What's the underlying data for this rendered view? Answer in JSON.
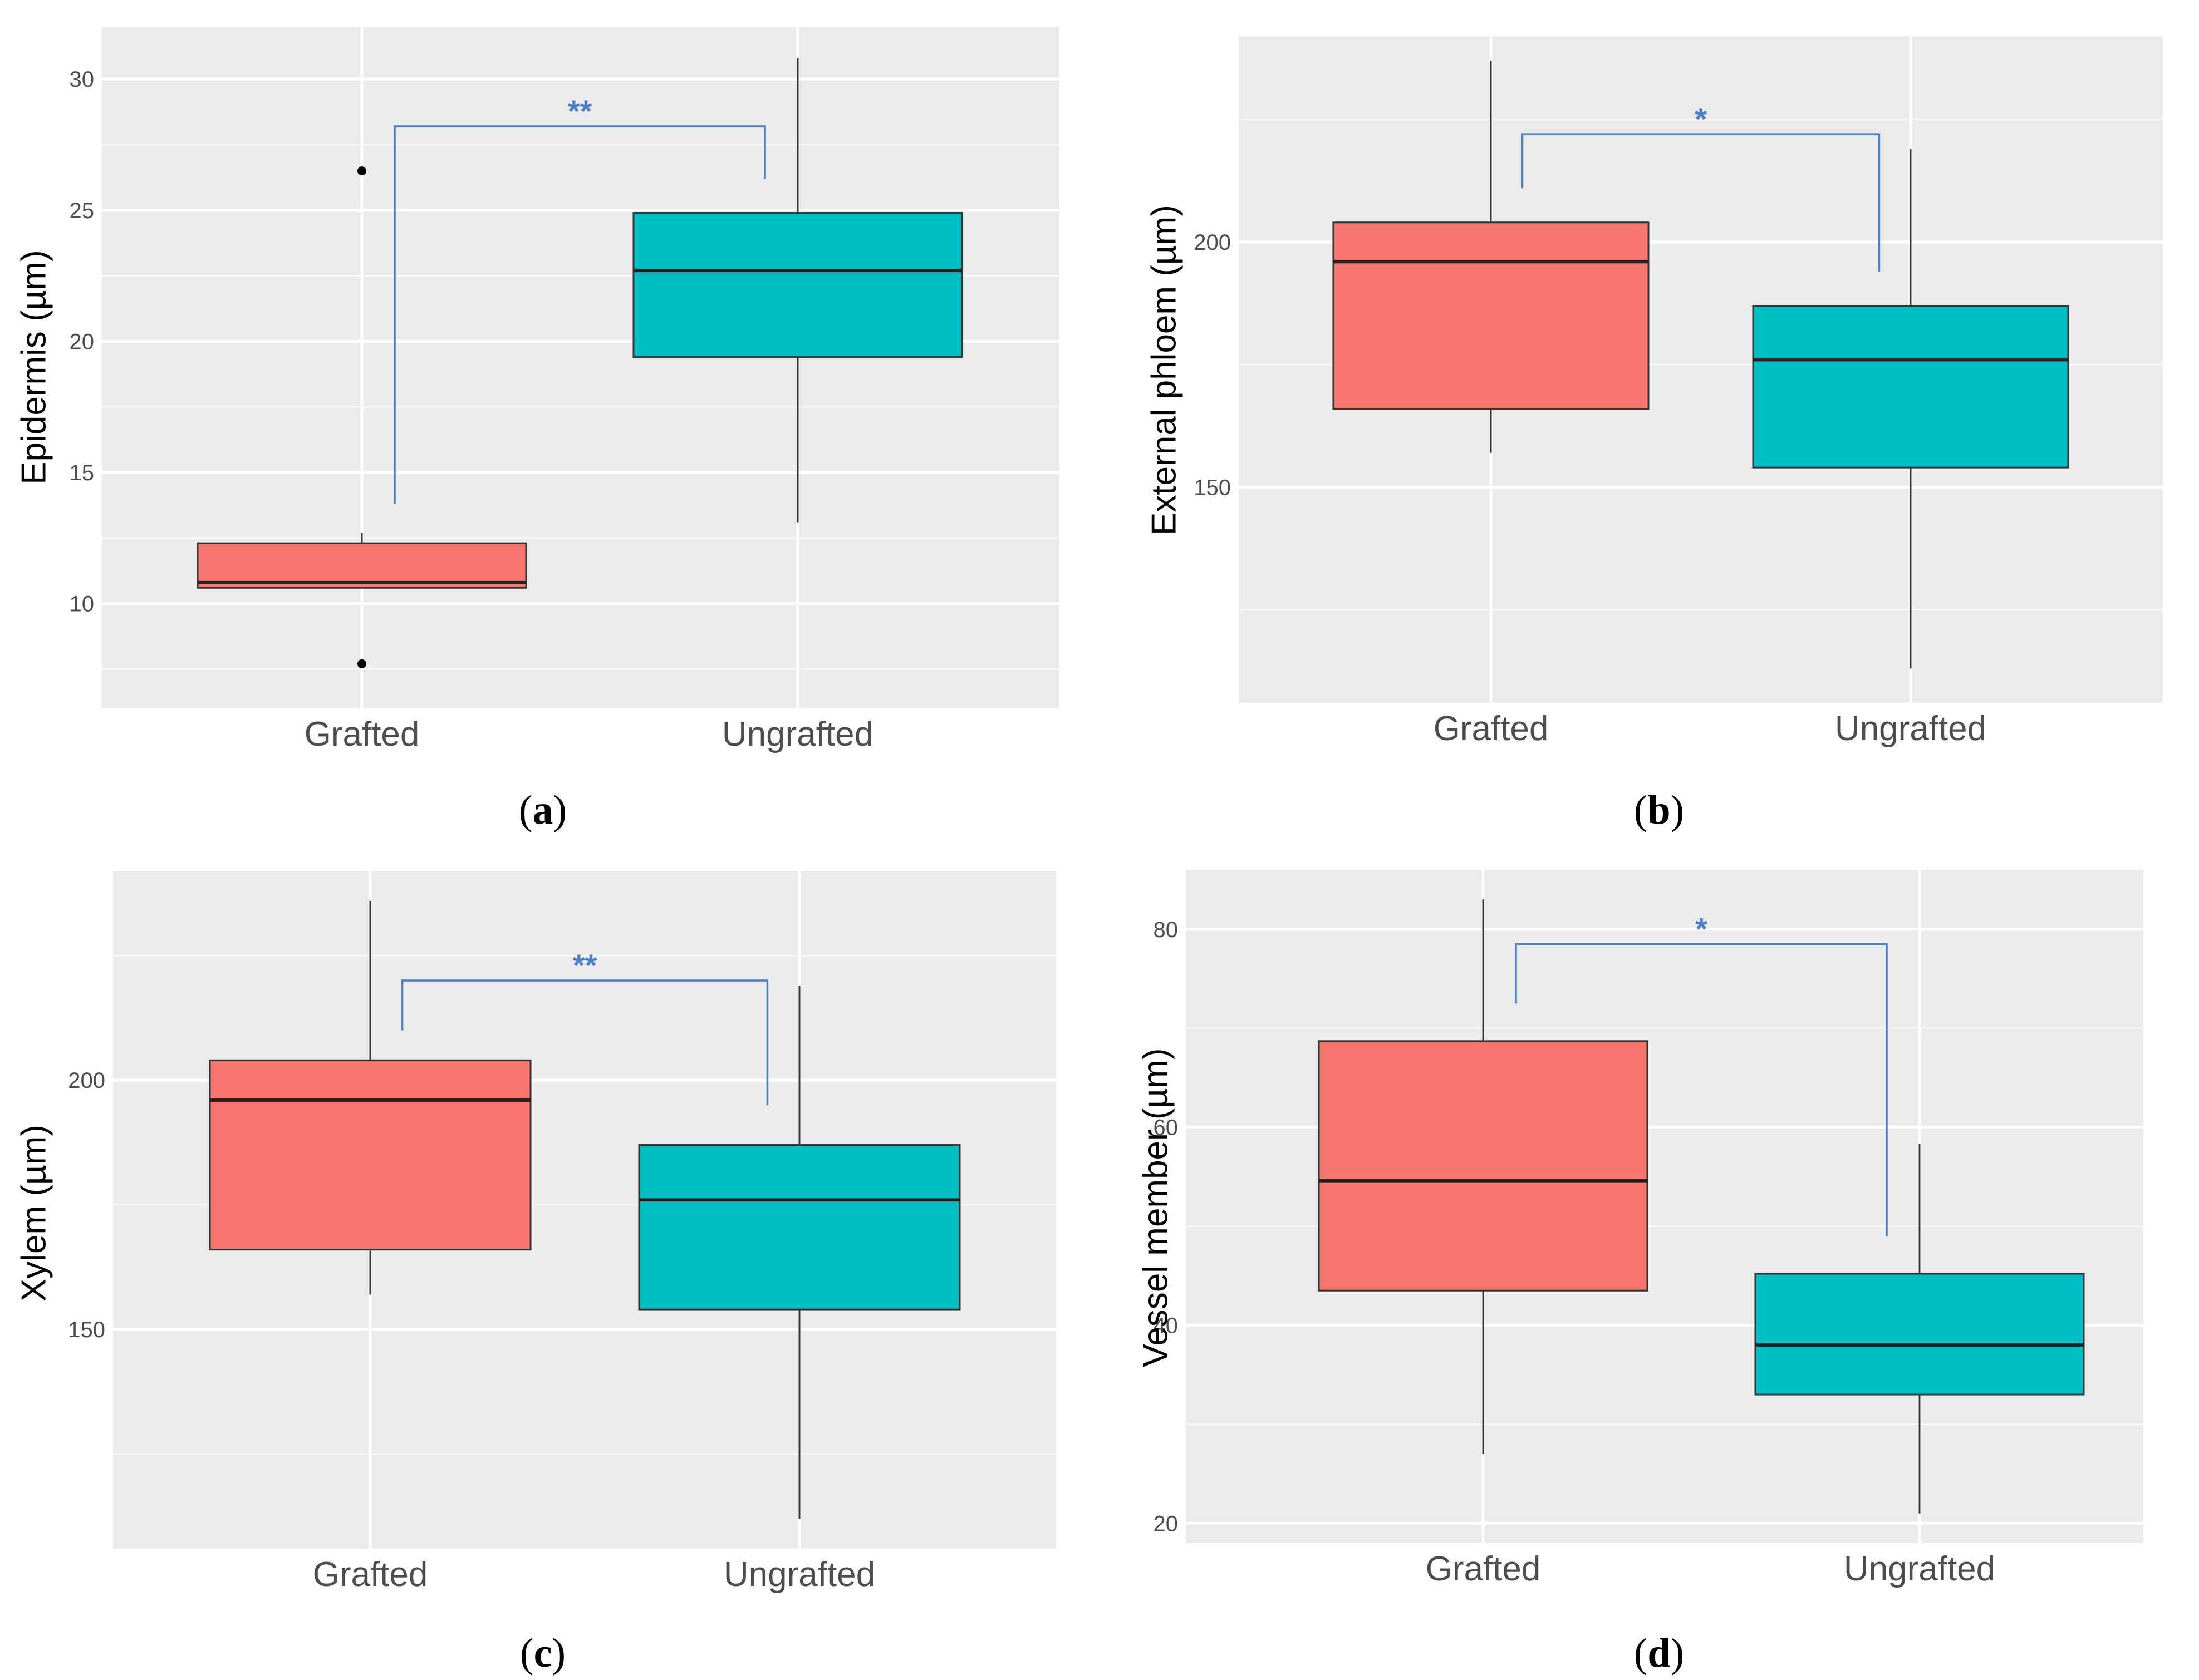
{
  "chart_data": [
    {
      "type": "boxplot",
      "panel_label": "a",
      "ylabel": "Epidermis (µm)",
      "ylim": [
        6,
        32
      ],
      "yticks": [
        10,
        15,
        20,
        25,
        30
      ],
      "categories": [
        "Grafted",
        "Ungrafted"
      ],
      "boxes": [
        {
          "name": "Grafted",
          "color": "#F8766D",
          "whisker_low": 10.6,
          "q1": 10.6,
          "median": 10.8,
          "q3": 12.3,
          "whisker_high": 12.7,
          "outliers": [
            7.7,
            26.5
          ]
        },
        {
          "name": "Ungrafted",
          "color": "#00BFC4",
          "whisker_low": 13.1,
          "q1": 19.4,
          "median": 22.7,
          "q3": 24.9,
          "whisker_high": 30.8,
          "outliers": []
        }
      ],
      "significance": {
        "label": "**",
        "color": "#4A7FCB",
        "bar": 28.2,
        "left_end": 13.8,
        "right_end": 26.2
      }
    },
    {
      "type": "boxplot",
      "panel_label": "b",
      "ylabel": "External phloem (µm)",
      "ylim": [
        106,
        242
      ],
      "yticks": [
        150,
        200
      ],
      "categories": [
        "Grafted",
        "Ungrafted"
      ],
      "boxes": [
        {
          "name": "Grafted",
          "color": "#F8766D",
          "whisker_low": 157,
          "q1": 166,
          "median": 196,
          "q3": 204,
          "whisker_high": 237,
          "outliers": []
        },
        {
          "name": "Ungrafted",
          "color": "#00BFC4",
          "whisker_low": 113,
          "q1": 154,
          "median": 176,
          "q3": 187,
          "whisker_high": 219,
          "outliers": []
        }
      ],
      "significance": {
        "label": "*",
        "color": "#4A7FCB",
        "bar": 222,
        "left_end": 211,
        "right_end": 194
      }
    },
    {
      "type": "boxplot",
      "panel_label": "c",
      "ylabel": "Xylem (µm)",
      "ylim": [
        106,
        242
      ],
      "yticks": [
        150,
        200
      ],
      "categories": [
        "Grafted",
        "Ungrafted"
      ],
      "boxes": [
        {
          "name": "Grafted",
          "color": "#F8766D",
          "whisker_low": 157,
          "q1": 166,
          "median": 196,
          "q3": 204,
          "whisker_high": 236,
          "outliers": []
        },
        {
          "name": "Ungrafted",
          "color": "#00BFC4",
          "whisker_low": 112,
          "q1": 154,
          "median": 176,
          "q3": 187,
          "whisker_high": 219,
          "outliers": []
        }
      ],
      "significance": {
        "label": "**",
        "color": "#4A7FCB",
        "bar": 220,
        "left_end": 210,
        "right_end": 195
      }
    },
    {
      "type": "boxplot",
      "panel_label": "d",
      "ylabel": "Vessel member (µm)",
      "ylim": [
        18,
        86
      ],
      "yticks": [
        20,
        40,
        60,
        80
      ],
      "categories": [
        "Grafted",
        "Ungrafted"
      ],
      "boxes": [
        {
          "name": "Grafted",
          "color": "#F8766D",
          "whisker_low": 27,
          "q1": 43.5,
          "median": 54.6,
          "q3": 68.7,
          "whisker_high": 83,
          "outliers": []
        },
        {
          "name": "Ungrafted",
          "color": "#00BFC4",
          "whisker_low": 21,
          "q1": 33,
          "median": 38,
          "q3": 45.2,
          "whisker_high": 58.3,
          "outliers": []
        }
      ],
      "significance": {
        "label": "*",
        "color": "#4A7FCB",
        "bar": 78.5,
        "left_end": 72.5,
        "right_end": 49
      }
    }
  ]
}
